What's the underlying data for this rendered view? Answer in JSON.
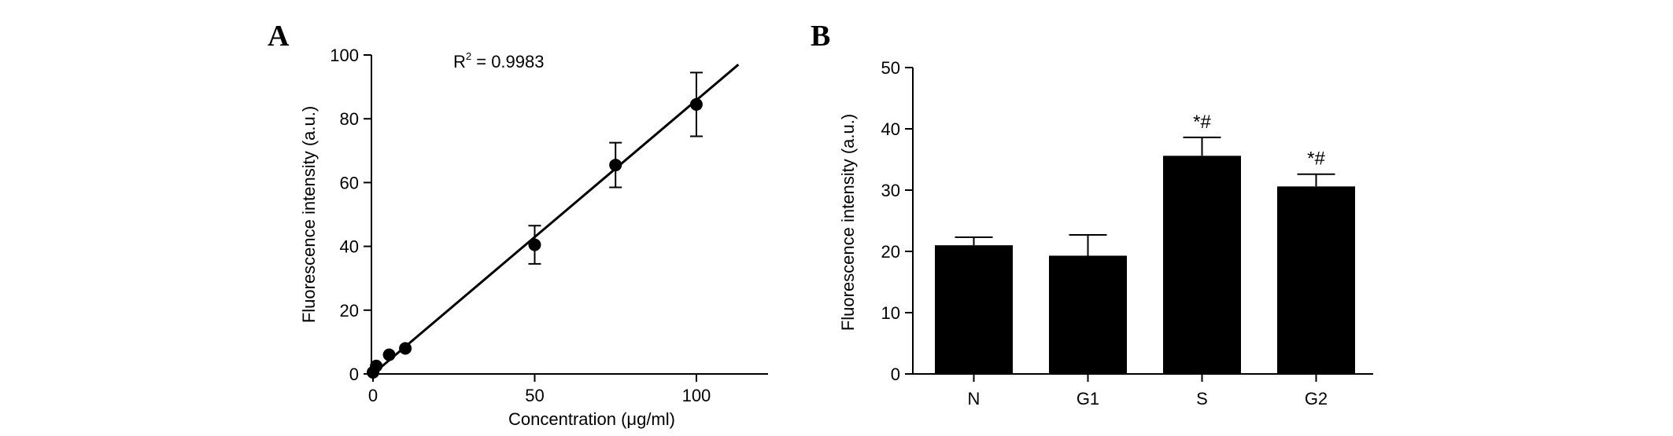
{
  "chart_data": [
    {
      "panel": "A",
      "type": "scatter",
      "xlabel": "Concentration (μg/ml)",
      "ylabel": "Fluorescence intensity (a.u.)",
      "xlim": [
        0,
        128
      ],
      "ylim": [
        0,
        100
      ],
      "xticks": [
        0,
        50,
        100
      ],
      "yticks": [
        0,
        20,
        40,
        60,
        80,
        100
      ],
      "annotation": "R² = 0.9983",
      "points": [
        {
          "x": 0,
          "y": 0.5,
          "err": 0
        },
        {
          "x": 1,
          "y": 2.5,
          "err": 0
        },
        {
          "x": 5,
          "y": 6,
          "err": 0
        },
        {
          "x": 10,
          "y": 8,
          "err": 0
        },
        {
          "x": 50,
          "y": 40.5,
          "err": 6
        },
        {
          "x": 75,
          "y": 65.5,
          "err": 7
        },
        {
          "x": 100,
          "y": 84.5,
          "err": 10
        }
      ],
      "fit": {
        "x": [
          0,
          113
        ],
        "y": [
          0,
          97
        ]
      },
      "grid": false
    },
    {
      "panel": "B",
      "type": "bar",
      "ylabel": "Fluorescence intensity (a.u.)",
      "ylim": [
        0,
        50
      ],
      "yticks": [
        0,
        10,
        20,
        30,
        40,
        50
      ],
      "categories": [
        "N",
        "G1",
        "S",
        "G2"
      ],
      "values": [
        21,
        19.3,
        35.6,
        30.6
      ],
      "errors": [
        1.3,
        3.4,
        3.0,
        2.0
      ],
      "significance": [
        "",
        "",
        "*#",
        "*#"
      ],
      "bar_color": "#000000",
      "grid": false
    }
  ]
}
